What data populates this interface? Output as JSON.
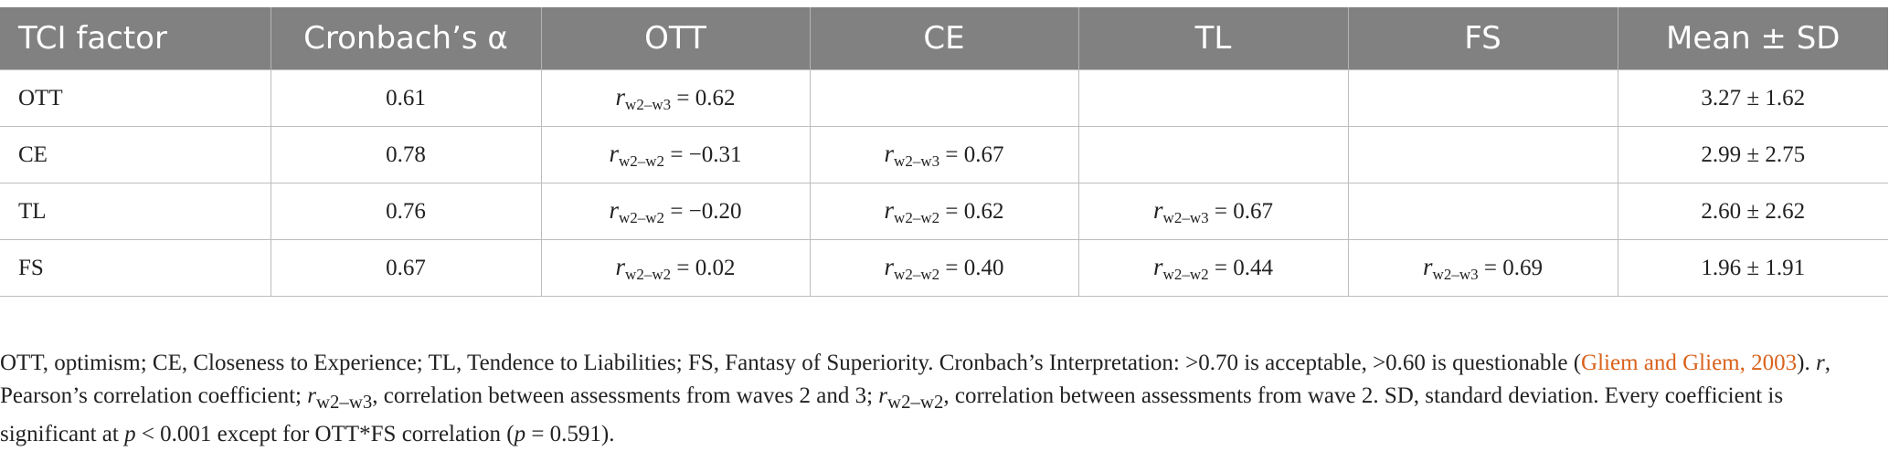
{
  "headers": [
    "TCI factor",
    "Cronbach’s α",
    "OTT",
    "CE",
    "TL",
    "FS",
    "Mean ± SD"
  ],
  "rows": [
    {
      "factor": "OTT",
      "alpha": "0.61",
      "cells": [
        {
          "sub": "w2–w3",
          "val": " = 0.62"
        },
        null,
        null,
        null
      ],
      "mean": "3.27 ± 1.62"
    },
    {
      "factor": "CE",
      "alpha": "0.78",
      "cells": [
        {
          "sub": "w2–w2",
          "val": " = −0.31"
        },
        {
          "sub": "w2–w3",
          "val": " = 0.67"
        },
        null,
        null
      ],
      "mean": "2.99 ± 2.75"
    },
    {
      "factor": "TL",
      "alpha": "0.76",
      "cells": [
        {
          "sub": "w2–w2",
          "val": " = −0.20"
        },
        {
          "sub": "w2–w2",
          "val": " = 0.62"
        },
        {
          "sub": "w2–w3",
          "val": " = 0.67"
        },
        null
      ],
      "mean": "2.60 ± 2.62"
    },
    {
      "factor": "FS",
      "alpha": "0.67",
      "cells": [
        {
          "sub": "w2–w2",
          "val": " = 0.02"
        },
        {
          "sub": "w2–w2",
          "val": " = 0.40"
        },
        {
          "sub": "w2–w2",
          "val": " = 0.44"
        },
        {
          "sub": "w2–w3",
          "val": " = 0.69"
        }
      ],
      "mean": "1.96 ± 1.91"
    }
  ],
  "footnote": {
    "p1": "OTT, optimism; CE, Closeness to Experience; TL, Tendence to Liabilities; FS, Fantasy of Superiority. Cronbach’s Interpretation: >0.70 is acceptable, >0.60 is questionable (",
    "ref": "Gliem and Gliem, 2003",
    "p2": "). ",
    "r": "r",
    "p3": ", Pearson’s correlation coefficient; ",
    "sub1": "w2–w3",
    "p4": ", correlation between assessments from waves 2 and 3; ",
    "sub2": "w2–w2",
    "p5": ", correlation between assessments from wave 2. SD, standard deviation. Every coefficient is significant at ",
    "p": "p",
    "p6": " < 0.001 except for OTT*FS correlation (",
    "p7": " = 0.591)."
  }
}
